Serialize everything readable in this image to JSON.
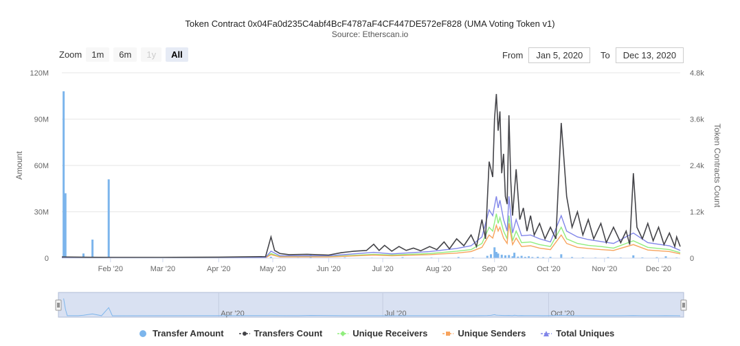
{
  "chart_data": {
    "type": "line",
    "title": "Token Contract 0x04Fa0d235C4abf4BcF4787aF4CF447DE572eF828 (UMA Voting Token v1)",
    "subtitle": "Source: Etherscan.io",
    "xlabel": "",
    "ylabel_left": "Amount",
    "ylabel_right": "Token Contracts Count",
    "x_range": [
      "2020-01-05",
      "2020-12-13"
    ],
    "y_left_lim": [
      0,
      120000000
    ],
    "y_right_lim": [
      0,
      4800
    ],
    "y_left_ticks": [
      "0",
      "30M",
      "60M",
      "90M",
      "120M"
    ],
    "y_right_ticks": [
      "0",
      "1.2k",
      "2.4k",
      "3.6k",
      "4.8k"
    ],
    "x_ticks": [
      {
        "date": "2020-02-01",
        "label": "Feb '20"
      },
      {
        "date": "2020-03-01",
        "label": "Mar '20"
      },
      {
        "date": "2020-04-01",
        "label": "Apr '20"
      },
      {
        "date": "2020-05-01",
        "label": "May '20"
      },
      {
        "date": "2020-06-01",
        "label": "Jun '20"
      },
      {
        "date": "2020-07-01",
        "label": "Jul '20"
      },
      {
        "date": "2020-08-01",
        "label": "Aug '20"
      },
      {
        "date": "2020-09-01",
        "label": "Sep '20"
      },
      {
        "date": "2020-10-01",
        "label": "Oct '20"
      },
      {
        "date": "2020-11-01",
        "label": "Nov '20"
      },
      {
        "date": "2020-12-01",
        "label": "Dec '20"
      }
    ],
    "navigator_ticks": [
      {
        "date": "2020-04-01",
        "label": "Apr '20"
      },
      {
        "date": "2020-07-01",
        "label": "Jul '20"
      },
      {
        "date": "2020-10-01",
        "label": "Oct '20"
      }
    ],
    "grid": true,
    "legend_position": "bottom-center",
    "colors": {
      "transfer_amount": "#7cb5ec",
      "transfers_count": "#434348",
      "unique_receivers": "#90ed7d",
      "unique_senders": "#f7a35c",
      "total_uniques": "#8085e9",
      "grid": "#e6e6e6",
      "navigator_fill": "#d9e1f2",
      "navigator_mask": "rgba(102,133,194,0.3)"
    },
    "series": [
      {
        "name": "Transfer Amount",
        "type": "bar",
        "axis": "left",
        "points": [
          [
            "2020-01-06",
            108000000
          ],
          [
            "2020-01-07",
            42000000
          ],
          [
            "2020-01-08",
            600000
          ],
          [
            "2020-01-14",
            400000
          ],
          [
            "2020-01-17",
            3000000
          ],
          [
            "2020-01-22",
            12000000
          ],
          [
            "2020-01-27",
            300000
          ],
          [
            "2020-01-31",
            51000000
          ],
          [
            "2020-02-02",
            200000
          ],
          [
            "2020-04-30",
            900000
          ],
          [
            "2020-05-15",
            300000
          ],
          [
            "2020-05-22",
            2000000
          ],
          [
            "2020-06-10",
            500000
          ],
          [
            "2020-06-25",
            300000
          ],
          [
            "2020-07-12",
            600000
          ],
          [
            "2020-07-28",
            400000
          ],
          [
            "2020-08-12",
            700000
          ],
          [
            "2020-08-20",
            500000
          ],
          [
            "2020-08-28",
            1500000
          ],
          [
            "2020-08-30",
            2500000
          ],
          [
            "2020-09-01",
            7000000
          ],
          [
            "2020-09-02",
            4000000
          ],
          [
            "2020-09-03",
            3000000
          ],
          [
            "2020-09-05",
            2200000
          ],
          [
            "2020-09-07",
            1800000
          ],
          [
            "2020-09-09",
            2000000
          ],
          [
            "2020-09-11",
            1200000
          ],
          [
            "2020-09-12",
            3500000
          ],
          [
            "2020-09-14",
            1000000
          ],
          [
            "2020-09-16",
            1500000
          ],
          [
            "2020-09-18",
            800000
          ],
          [
            "2020-09-20",
            1200000
          ],
          [
            "2020-09-22",
            700000
          ],
          [
            "2020-09-25",
            900000
          ],
          [
            "2020-09-28",
            600000
          ],
          [
            "2020-10-02",
            800000
          ],
          [
            "2020-10-08",
            2500000
          ],
          [
            "2020-10-14",
            700000
          ],
          [
            "2020-10-20",
            500000
          ],
          [
            "2020-10-27",
            400000
          ],
          [
            "2020-11-03",
            600000
          ],
          [
            "2020-11-10",
            400000
          ],
          [
            "2020-11-17",
            1800000
          ],
          [
            "2020-11-22",
            500000
          ],
          [
            "2020-11-30",
            600000
          ],
          [
            "2020-12-05",
            1200000
          ],
          [
            "2020-12-11",
            400000
          ]
        ]
      },
      {
        "name": "Transfers Count",
        "axis": "right",
        "points": [
          [
            "2020-01-05",
            30
          ],
          [
            "2020-01-15",
            25
          ],
          [
            "2020-02-01",
            20
          ],
          [
            "2020-03-01",
            20
          ],
          [
            "2020-04-01",
            25
          ],
          [
            "2020-04-27",
            40
          ],
          [
            "2020-04-30",
            550
          ],
          [
            "2020-05-02",
            200
          ],
          [
            "2020-05-05",
            120
          ],
          [
            "2020-05-10",
            90
          ],
          [
            "2020-05-20",
            100
          ],
          [
            "2020-06-01",
            80
          ],
          [
            "2020-06-08",
            140
          ],
          [
            "2020-06-15",
            180
          ],
          [
            "2020-06-22",
            200
          ],
          [
            "2020-06-26",
            360
          ],
          [
            "2020-06-29",
            200
          ],
          [
            "2020-07-02",
            330
          ],
          [
            "2020-07-06",
            180
          ],
          [
            "2020-07-10",
            300
          ],
          [
            "2020-07-14",
            200
          ],
          [
            "2020-07-18",
            260
          ],
          [
            "2020-07-22",
            190
          ],
          [
            "2020-07-27",
            300
          ],
          [
            "2020-07-31",
            220
          ],
          [
            "2020-08-04",
            420
          ],
          [
            "2020-08-07",
            240
          ],
          [
            "2020-08-11",
            500
          ],
          [
            "2020-08-15",
            320
          ],
          [
            "2020-08-19",
            600
          ],
          [
            "2020-08-22",
            300
          ],
          [
            "2020-08-25",
            1000
          ],
          [
            "2020-08-27",
            500
          ],
          [
            "2020-08-29",
            2500
          ],
          [
            "2020-08-30",
            2300
          ],
          [
            "2020-08-31",
            2100
          ],
          [
            "2020-09-01",
            3600
          ],
          [
            "2020-09-02",
            4250
          ],
          [
            "2020-09-03",
            3300
          ],
          [
            "2020-09-04",
            3800
          ],
          [
            "2020-09-05",
            2200
          ],
          [
            "2020-09-06",
            2700
          ],
          [
            "2020-09-07",
            1600
          ],
          [
            "2020-09-08",
            1400
          ],
          [
            "2020-09-09",
            3700
          ],
          [
            "2020-09-10",
            2000
          ],
          [
            "2020-09-11",
            1100
          ],
          [
            "2020-09-13",
            2300
          ],
          [
            "2020-09-15",
            1000
          ],
          [
            "2020-09-17",
            1300
          ],
          [
            "2020-09-19",
            700
          ],
          [
            "2020-09-21",
            1100
          ],
          [
            "2020-09-23",
            600
          ],
          [
            "2020-09-26",
            900
          ],
          [
            "2020-09-29",
            500
          ],
          [
            "2020-10-02",
            800
          ],
          [
            "2020-10-05",
            500
          ],
          [
            "2020-10-08",
            3500
          ],
          [
            "2020-10-09",
            2900
          ],
          [
            "2020-10-11",
            1600
          ],
          [
            "2020-10-14",
            800
          ],
          [
            "2020-10-17",
            1200
          ],
          [
            "2020-10-20",
            600
          ],
          [
            "2020-10-23",
            1000
          ],
          [
            "2020-10-26",
            500
          ],
          [
            "2020-10-30",
            900
          ],
          [
            "2020-11-02",
            400
          ],
          [
            "2020-11-06",
            800
          ],
          [
            "2020-11-10",
            400
          ],
          [
            "2020-11-13",
            700
          ],
          [
            "2020-11-15",
            350
          ],
          [
            "2020-11-17",
            2200
          ],
          [
            "2020-11-19",
            800
          ],
          [
            "2020-11-22",
            500
          ],
          [
            "2020-11-25",
            900
          ],
          [
            "2020-11-28",
            450
          ],
          [
            "2020-12-01",
            800
          ],
          [
            "2020-12-04",
            350
          ],
          [
            "2020-12-07",
            650
          ],
          [
            "2020-12-10",
            300
          ],
          [
            "2020-12-11",
            550
          ],
          [
            "2020-12-13",
            300
          ]
        ]
      },
      {
        "name": "Unique Receivers",
        "axis": "right",
        "points": [
          [
            "2020-01-05",
            15
          ],
          [
            "2020-03-01",
            10
          ],
          [
            "2020-04-27",
            15
          ],
          [
            "2020-04-30",
            120
          ],
          [
            "2020-05-05",
            40
          ],
          [
            "2020-06-01",
            40
          ],
          [
            "2020-06-26",
            100
          ],
          [
            "2020-07-06",
            80
          ],
          [
            "2020-07-27",
            120
          ],
          [
            "2020-08-11",
            180
          ],
          [
            "2020-08-19",
            220
          ],
          [
            "2020-08-25",
            380
          ],
          [
            "2020-08-29",
            800
          ],
          [
            "2020-08-31",
            700
          ],
          [
            "2020-09-02",
            1150
          ],
          [
            "2020-09-03",
            900
          ],
          [
            "2020-09-04",
            1050
          ],
          [
            "2020-09-06",
            700
          ],
          [
            "2020-09-08",
            500
          ],
          [
            "2020-09-09",
            1100
          ],
          [
            "2020-09-11",
            450
          ],
          [
            "2020-09-13",
            700
          ],
          [
            "2020-09-16",
            400
          ],
          [
            "2020-09-21",
            420
          ],
          [
            "2020-09-26",
            350
          ],
          [
            "2020-10-02",
            300
          ],
          [
            "2020-10-08",
            800
          ],
          [
            "2020-10-11",
            500
          ],
          [
            "2020-10-17",
            380
          ],
          [
            "2020-10-23",
            330
          ],
          [
            "2020-10-30",
            300
          ],
          [
            "2020-11-06",
            260
          ],
          [
            "2020-11-17",
            450
          ],
          [
            "2020-11-25",
            280
          ],
          [
            "2020-12-01",
            250
          ],
          [
            "2020-12-07",
            220
          ],
          [
            "2020-12-13",
            140
          ]
        ]
      },
      {
        "name": "Unique Senders",
        "axis": "right",
        "points": [
          [
            "2020-01-05",
            10
          ],
          [
            "2020-03-01",
            8
          ],
          [
            "2020-04-27",
            10
          ],
          [
            "2020-04-30",
            90
          ],
          [
            "2020-05-05",
            30
          ],
          [
            "2020-06-01",
            30
          ],
          [
            "2020-06-26",
            80
          ],
          [
            "2020-07-06",
            60
          ],
          [
            "2020-07-27",
            90
          ],
          [
            "2020-08-11",
            130
          ],
          [
            "2020-08-19",
            170
          ],
          [
            "2020-08-25",
            280
          ],
          [
            "2020-08-29",
            600
          ],
          [
            "2020-08-31",
            520
          ],
          [
            "2020-09-02",
            850
          ],
          [
            "2020-09-03",
            700
          ],
          [
            "2020-09-04",
            800
          ],
          [
            "2020-09-06",
            520
          ],
          [
            "2020-09-08",
            380
          ],
          [
            "2020-09-09",
            900
          ],
          [
            "2020-09-11",
            350
          ],
          [
            "2020-09-13",
            520
          ],
          [
            "2020-09-16",
            300
          ],
          [
            "2020-09-21",
            320
          ],
          [
            "2020-09-26",
            260
          ],
          [
            "2020-10-02",
            220
          ],
          [
            "2020-10-08",
            600
          ],
          [
            "2020-10-11",
            380
          ],
          [
            "2020-10-17",
            280
          ],
          [
            "2020-10-23",
            250
          ],
          [
            "2020-10-30",
            220
          ],
          [
            "2020-11-06",
            200
          ],
          [
            "2020-11-17",
            350
          ],
          [
            "2020-11-25",
            210
          ],
          [
            "2020-12-01",
            190
          ],
          [
            "2020-12-07",
            170
          ],
          [
            "2020-12-13",
            110
          ]
        ]
      },
      {
        "name": "Total Uniques",
        "axis": "right",
        "points": [
          [
            "2020-01-05",
            20
          ],
          [
            "2020-03-01",
            15
          ],
          [
            "2020-04-27",
            20
          ],
          [
            "2020-04-30",
            180
          ],
          [
            "2020-05-05",
            60
          ],
          [
            "2020-06-01",
            60
          ],
          [
            "2020-06-26",
            150
          ],
          [
            "2020-07-06",
            110
          ],
          [
            "2020-07-27",
            170
          ],
          [
            "2020-08-11",
            250
          ],
          [
            "2020-08-19",
            320
          ],
          [
            "2020-08-25",
            550
          ],
          [
            "2020-08-29",
            1250
          ],
          [
            "2020-08-31",
            1100
          ],
          [
            "2020-09-02",
            1600
          ],
          [
            "2020-09-03",
            1300
          ],
          [
            "2020-09-04",
            1500
          ],
          [
            "2020-09-06",
            1000
          ],
          [
            "2020-09-08",
            700
          ],
          [
            "2020-09-09",
            1600
          ],
          [
            "2020-09-11",
            650
          ],
          [
            "2020-09-13",
            1000
          ],
          [
            "2020-09-16",
            580
          ],
          [
            "2020-09-21",
            600
          ],
          [
            "2020-09-26",
            500
          ],
          [
            "2020-10-02",
            420
          ],
          [
            "2020-10-08",
            1100
          ],
          [
            "2020-10-11",
            700
          ],
          [
            "2020-10-17",
            550
          ],
          [
            "2020-10-23",
            480
          ],
          [
            "2020-10-30",
            430
          ],
          [
            "2020-11-06",
            380
          ],
          [
            "2020-11-17",
            650
          ],
          [
            "2020-11-25",
            400
          ],
          [
            "2020-12-01",
            360
          ],
          [
            "2020-12-07",
            320
          ],
          [
            "2020-12-13",
            200
          ]
        ]
      }
    ]
  },
  "toolbar": {
    "zoom_label": "Zoom",
    "zoom_buttons": [
      {
        "label": "1m",
        "state": "normal"
      },
      {
        "label": "6m",
        "state": "normal"
      },
      {
        "label": "1y",
        "state": "disabled"
      },
      {
        "label": "All",
        "state": "active"
      }
    ],
    "from_label": "From",
    "from_value": "Jan 5, 2020",
    "to_label": "To",
    "to_value": "Dec 13, 2020"
  },
  "legend": [
    {
      "label": "Transfer Amount",
      "icon": "circle"
    },
    {
      "label": "Transfers Count",
      "icon": "line-circle"
    },
    {
      "label": "Unique Receivers",
      "icon": "line-diamond"
    },
    {
      "label": "Unique Senders",
      "icon": "line-square"
    },
    {
      "label": "Total Uniques",
      "icon": "line-triangle"
    }
  ]
}
